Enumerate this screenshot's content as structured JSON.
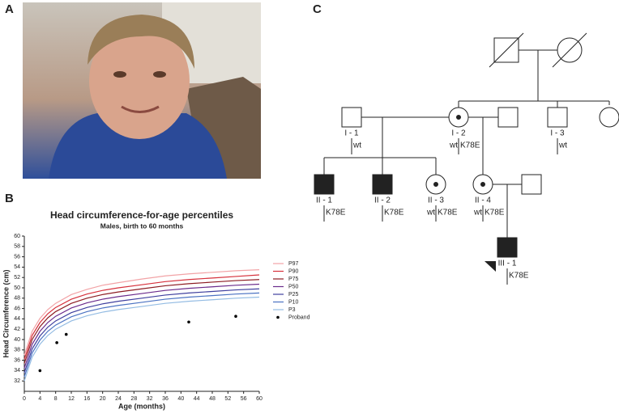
{
  "panels": {
    "a": "A",
    "b": "B",
    "c": "C"
  },
  "chart_data": {
    "type": "line",
    "title": "Head circumference-for-age percentiles",
    "subtitle": "Males, birth to 60 months",
    "x_label": "Age  (months)",
    "y_label": "Head Circumference  (cm)",
    "x": [
      0,
      2,
      4,
      6,
      8,
      12,
      16,
      20,
      24,
      30,
      36,
      42,
      48,
      54,
      60
    ],
    "series": [
      {
        "name": "P97",
        "color": "#f2a3a6",
        "values": [
          37.0,
          41.6,
          44.1,
          45.8,
          47.0,
          48.7,
          49.7,
          50.5,
          51.0,
          51.7,
          52.3,
          52.7,
          53.0,
          53.3,
          53.5
        ]
      },
      {
        "name": "P90",
        "color": "#d6313c",
        "values": [
          36.2,
          40.8,
          43.3,
          45.0,
          46.2,
          47.8,
          48.8,
          49.5,
          50.0,
          50.6,
          51.2,
          51.6,
          51.9,
          52.2,
          52.5
        ]
      },
      {
        "name": "P75",
        "color": "#8c1c22",
        "values": [
          35.4,
          40.0,
          42.5,
          44.2,
          45.4,
          47.0,
          48.0,
          48.7,
          49.2,
          49.8,
          50.4,
          50.8,
          51.1,
          51.4,
          51.6
        ]
      },
      {
        "name": "P50",
        "color": "#6b2c8c",
        "values": [
          34.5,
          39.1,
          41.6,
          43.3,
          44.5,
          46.1,
          47.1,
          47.8,
          48.3,
          48.9,
          49.5,
          49.9,
          50.2,
          50.5,
          50.7
        ]
      },
      {
        "name": "P25",
        "color": "#3f3f9e",
        "values": [
          33.6,
          38.2,
          40.7,
          42.4,
          43.6,
          45.2,
          46.2,
          46.9,
          47.4,
          48.0,
          48.6,
          49.0,
          49.3,
          49.6,
          49.8
        ]
      },
      {
        "name": "P10",
        "color": "#4b72c2",
        "values": [
          32.8,
          37.4,
          39.9,
          41.6,
          42.8,
          44.4,
          45.4,
          46.1,
          46.6,
          47.2,
          47.8,
          48.2,
          48.5,
          48.8,
          49.0
        ]
      },
      {
        "name": "P3",
        "color": "#94bce3",
        "values": [
          32.0,
          36.6,
          39.1,
          40.8,
          42.0,
          43.6,
          44.6,
          45.3,
          45.8,
          46.4,
          47.0,
          47.4,
          47.7,
          48.0,
          48.2
        ]
      }
    ],
    "points": {
      "name": "Proband",
      "color": "#000000",
      "x": [
        4,
        8.3,
        10.7,
        42,
        54
      ],
      "y": [
        34,
        39.4,
        41,
        43.4,
        44.5
      ]
    },
    "xlim": [
      0,
      60
    ],
    "xticks": [
      0,
      4,
      8,
      12,
      16,
      20,
      24,
      28,
      32,
      36,
      40,
      44,
      48,
      52,
      56,
      60
    ],
    "ylim": [
      30,
      60
    ],
    "yticks": [
      32,
      34,
      36,
      38,
      40,
      42,
      44,
      46,
      48,
      50,
      52,
      54,
      56,
      58,
      60
    ]
  },
  "pedigree": {
    "nodes": [
      {
        "label": "I - 1",
        "left": null,
        "right": "wt"
      },
      {
        "label": "I - 2",
        "left": "wt",
        "right": "K78E"
      },
      {
        "label": "I - 3",
        "left": null,
        "right": "wt"
      },
      {
        "label": "II - 1",
        "left": null,
        "right": "K78E"
      },
      {
        "label": "II - 2",
        "left": null,
        "right": "K78E"
      },
      {
        "label": "II - 3",
        "left": "wt",
        "right": "K78E"
      },
      {
        "label": "II - 4",
        "left": "wt",
        "right": "K78E"
      },
      {
        "label": "III - 1",
        "left": null,
        "right": "K78E"
      }
    ]
  }
}
